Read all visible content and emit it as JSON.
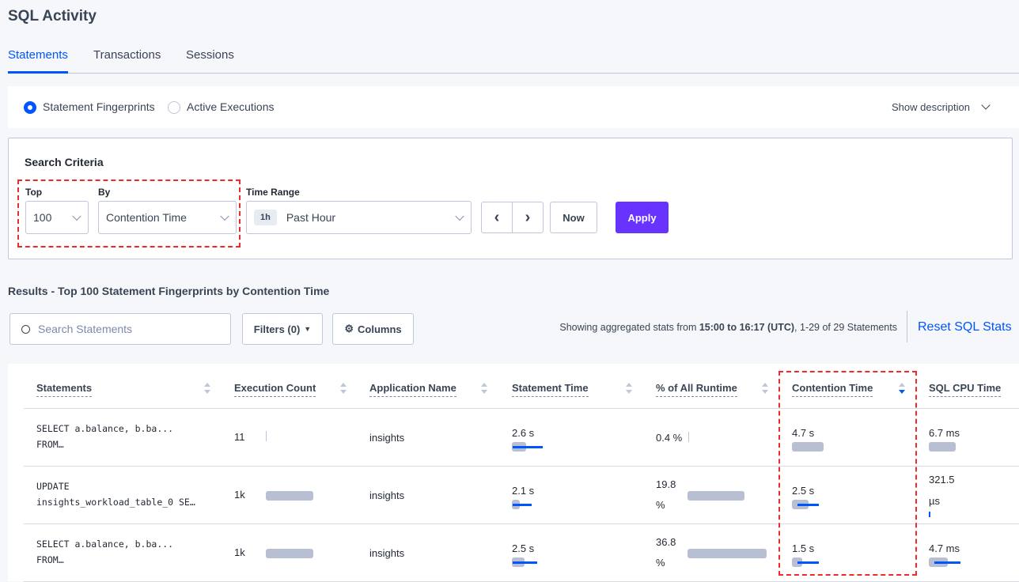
{
  "page": {
    "title": "SQL Activity"
  },
  "tabs": [
    {
      "label": "Statements",
      "active": true
    },
    {
      "label": "Transactions"
    },
    {
      "label": "Sessions"
    }
  ],
  "view": {
    "options": [
      "Statement Fingerprints",
      "Active Executions"
    ],
    "selected": "Statement Fingerprints",
    "show_description": "Show description"
  },
  "search_criteria": {
    "heading": "Search Criteria",
    "top_label": "Top",
    "top_value": "100",
    "by_label": "By",
    "by_value": "Contention Time",
    "time_range_label": "Time Range",
    "time_badge": "1h",
    "time_value": "Past Hour",
    "now_label": "Now",
    "apply_label": "Apply"
  },
  "results": {
    "heading": "Results - Top 100 Statement Fingerprints by Contention Time",
    "search_placeholder": "Search Statements",
    "filters_label": "Filters (0)",
    "columns_label": "Columns",
    "stats_prefix": "Showing aggregated stats from ",
    "stats_range": "15:00 to 16:17 (UTC)",
    "stats_suffix": ", 1-29 of 29 Statements",
    "reset_label": "Reset SQL Stats"
  },
  "colors": {
    "accent": "#0055ff",
    "apply": "#6933ff",
    "highlight": "#f02a2a"
  },
  "table": {
    "columns": [
      "Statements",
      "Execution Count",
      "Application Name",
      "Statement Time",
      "% of All Runtime",
      "Contention Time",
      "SQL CPU Time"
    ],
    "sorted_column": "Contention Time",
    "sort_direction": "descending",
    "rows": [
      {
        "statement_l1": "SELECT a.balance, b.ba...",
        "statement_l2": "FROM…",
        "exec_count": "11",
        "exec_fill": 0.01,
        "app": "insights",
        "stmt_time": "2.6 s",
        "stmt_fill": 0.45,
        "stmt_dev": 0.8,
        "pct_l1": "0.4 %",
        "pct_l2": "",
        "pct_fill": 0.01,
        "cont_time": "4.7 s",
        "cont_fill": 0.5,
        "cont_dev": 0,
        "cpu_l1": "6.7 ms",
        "cpu_l2": "",
        "cpu_fill": 0.5,
        "cpu_dev": 0
      },
      {
        "statement_l1": "UPDATE",
        "statement_l2": "insights_workload_table_0 SE…",
        "exec_count": "1k",
        "exec_fill": 1,
        "app": "insights",
        "stmt_time": "2.1 s",
        "stmt_fill": 0.25,
        "stmt_dev": 0.5,
        "pct_l1": "19.8",
        "pct_l2": "%",
        "pct_fill": 0.72,
        "cont_time": "2.5 s",
        "cont_fill": 0.26,
        "cont_dev": 0.45,
        "cpu_l1": "321.5",
        "cpu_l2": "µs",
        "cpu_fill": 0.01,
        "cpu_dev": 0.02
      },
      {
        "statement_l1": "SELECT a.balance, b.ba...",
        "statement_l2": "FROM…",
        "exec_count": "1k",
        "exec_fill": 1,
        "app": "insights",
        "stmt_time": "2.5 s",
        "stmt_fill": 0.4,
        "stmt_dev": 0.65,
        "pct_l1": "36.8",
        "pct_l2": "%",
        "pct_fill": 1,
        "cont_time": "1.5 s",
        "cont_fill": 0.16,
        "cont_dev": 0.45,
        "cpu_l1": "4.7 ms",
        "cpu_l2": "",
        "cpu_fill": 0.35,
        "cpu_dev": 0.5
      }
    ]
  }
}
